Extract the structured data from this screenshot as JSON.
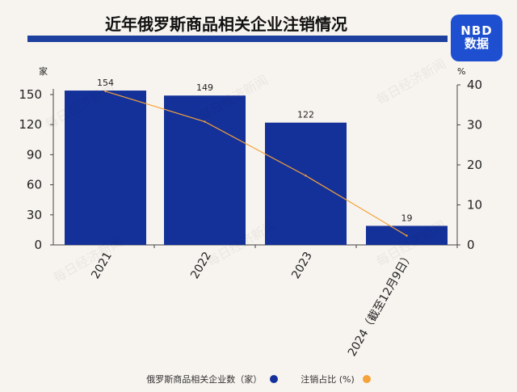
{
  "header": {
    "title": "近年俄罗斯商品相关企业注销情况",
    "logo_line1": "NBD",
    "logo_line2": "数据"
  },
  "chart_data": {
    "type": "bar",
    "categories": [
      "2021",
      "2022",
      "2023",
      "2024（截至12月9日）"
    ],
    "series": [
      {
        "name": "俄罗斯商品相关企业数（家）",
        "type": "bar",
        "axis": "left",
        "color": "#14319a",
        "values": [
          154,
          149,
          122,
          19
        ],
        "labels": [
          "154",
          "149",
          "122",
          "19"
        ]
      },
      {
        "name": "注销占比 (%)",
        "type": "line",
        "axis": "right",
        "color": "#f5a23a",
        "values": [
          38.4,
          30.8,
          17.3,
          2.3
        ]
      }
    ],
    "left_axis": {
      "unit": "家",
      "ylim": [
        0,
        150
      ],
      "ticks": [
        "0",
        "30",
        "60",
        "90",
        "120",
        "150"
      ]
    },
    "right_axis": {
      "unit": "%",
      "ylim": [
        0,
        40
      ],
      "ticks": [
        "0",
        "10",
        "20",
        "30",
        "40"
      ]
    },
    "grid": false,
    "legend": "bottom"
  },
  "watermark": "每日经济新闻"
}
